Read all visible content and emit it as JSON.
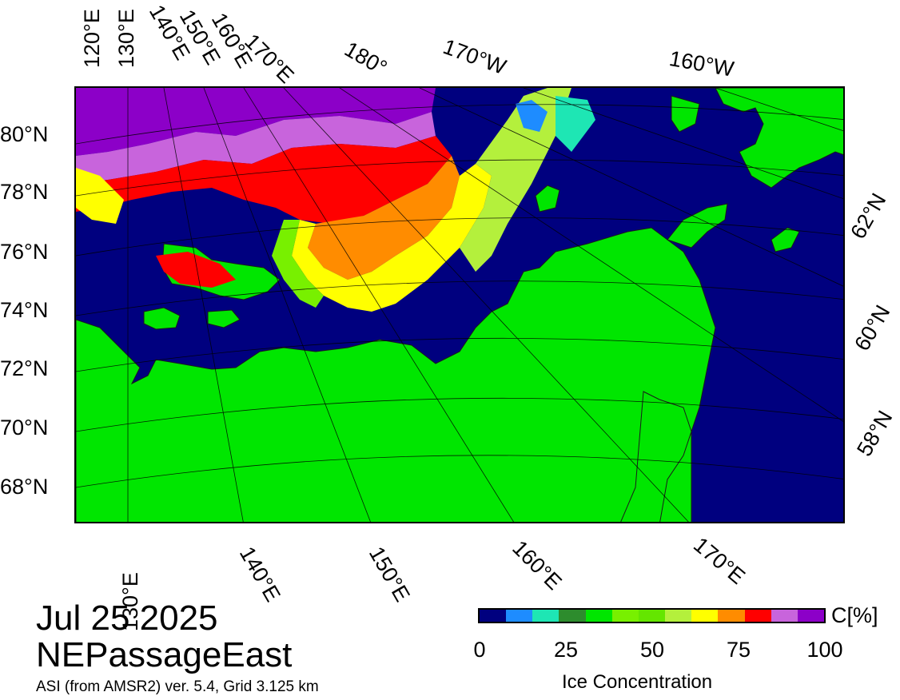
{
  "map": {
    "date": "Jul 25 2025",
    "region": "NEPassageEast",
    "source": "ASI (from AMSR2) ver. 5.4,  Grid 3.125 km",
    "lat_labels_left": [
      "80°N",
      "78°N",
      "76°N",
      "74°N",
      "72°N",
      "70°N",
      "68°N"
    ],
    "lat_labels_right": [
      "62°N",
      "60°N",
      "58°N"
    ],
    "lon_labels_top": [
      "120°E",
      "130°E",
      "140°E",
      "150°E",
      "160°E",
      "170°E",
      "180°",
      "170°W",
      "160°W"
    ],
    "lon_labels_bottom": [
      "130°E",
      "140°E",
      "150°E",
      "160°E",
      "170°E"
    ],
    "colors": {
      "ocean": "#00007f",
      "land": "#00e600",
      "coast": "#1a1a1a"
    }
  },
  "colorbar": {
    "title": "Ice Concentration",
    "unit": "C[%]",
    "ticks": [
      "0",
      "25",
      "50",
      "75",
      "100"
    ],
    "colors": [
      "#00007f",
      "#1e8cff",
      "#1ee6b4",
      "#2d8c2d",
      "#00e600",
      "#78f000",
      "#64e600",
      "#b4f03c",
      "#ffff00",
      "#ff8c00",
      "#ff0000",
      "#c864dc",
      "#8c00c8"
    ]
  }
}
